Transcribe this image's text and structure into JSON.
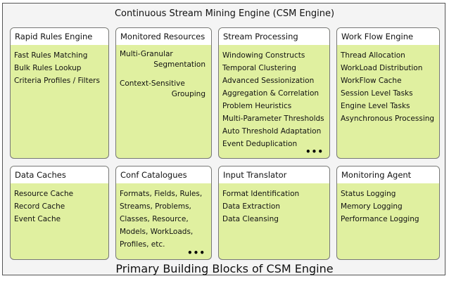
{
  "title": "Continuous Stream Mining Engine (CSM Engine)",
  "footer": "Primary Building Blocks of CSM Engine",
  "colors": {
    "block_fill": "#e0f0a0",
    "header_fill": "#ffffff",
    "border": "#777777"
  },
  "blocks": [
    {
      "title": "Rapid Rules Engine",
      "items": [
        "Fast Rules Matching",
        "Bulk Rules Lookup",
        "Criteria Profiles / Filters"
      ]
    },
    {
      "title": "Monitored Resources",
      "items": [
        [
          "Multi-Granular",
          "Segmentation"
        ],
        [
          "Context-Sensitive",
          "Grouping"
        ]
      ]
    },
    {
      "title": "Stream Processing",
      "items": [
        "Windowing Constructs",
        "Temporal Clustering",
        "Advanced Sessionization",
        "Aggregation & Correlation",
        "Problem Heuristics",
        "Multi-Parameter Thresholds",
        "Auto Threshold Adaptation",
        "Event Deduplication"
      ],
      "more": "•••"
    },
    {
      "title": "Work Flow Engine",
      "items": [
        "Thread Allocation",
        "WorkLoad Distribution",
        "WorkFlow Cache",
        "Session Level Tasks",
        "Engine Level Tasks",
        "Asynchronous Processing"
      ]
    },
    {
      "title": "Data Caches",
      "items": [
        "Resource Cache",
        "Record Cache",
        "Event Cache"
      ]
    },
    {
      "title": "Conf Catalogues",
      "items": [
        "Formats, Fields, Rules,",
        "Streams, Problems,",
        "Classes, Resource,",
        "Models, WorkLoads,",
        "Profiles, etc."
      ],
      "more": "•••"
    },
    {
      "title": "Input Translator",
      "items": [
        "Format Identification",
        "Data Extraction",
        "Data Cleansing"
      ]
    },
    {
      "title": "Monitoring Agent",
      "items": [
        "Status Logging",
        "Memory Logging",
        "Performance Logging"
      ]
    }
  ]
}
